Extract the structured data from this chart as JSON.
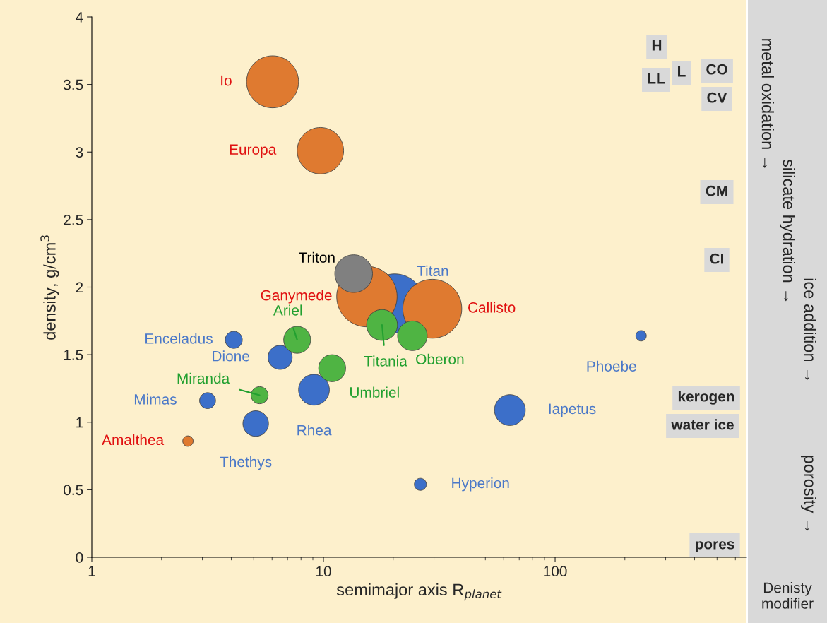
{
  "chart_data": {
    "type": "bubble",
    "xlabel": "semimajor axis R$_{planet}$",
    "ylabel": "density, g/cm$^{3}$",
    "log": "x",
    "xlim": [
      1,
      670
    ],
    "xticks": [
      1,
      10,
      100
    ],
    "ylim": [
      0,
      4
    ],
    "yticks": [
      0,
      0.5,
      1,
      1.5,
      2,
      2.5,
      3,
      3.5,
      4
    ],
    "grid": false,
    "series": [
      {
        "color": "#3c6fc9",
        "x": [
          20.3,
          4.1,
          6.5,
          3.16,
          9.1,
          5.1,
          26.2,
          63.8,
          235
        ],
        "values": [
          1.88,
          1.61,
          1.48,
          1.16,
          1.24,
          0.99,
          0.54,
          1.09,
          1.64
        ],
        "sizes": [
          0.95,
          0.08,
          0.16,
          0.07,
          0.26,
          0.18,
          0.04,
          0.26,
          0.03
        ],
        "value_labels": [
          "Titan",
          "Enceladus",
          "Dione",
          "Mimas",
          "Rhea",
          "Thethys",
          "Hyperion",
          "Iapetus",
          "Phoebe"
        ]
      },
      {
        "color": "#df7a30",
        "x": [
          6.03,
          9.7,
          15.4,
          29.5,
          2.6
        ],
        "values": [
          3.52,
          3.01,
          1.93,
          1.84,
          0.86
        ],
        "sizes": [
          0.74,
          0.59,
          1.0,
          0.95,
          0.03
        ],
        "value_labels": [
          "Io",
          "Europa",
          "Ganymede",
          "Callisto",
          "Amalthea"
        ]
      },
      {
        "color": "#4fb443",
        "x": [
          7.7,
          17.9,
          24.2,
          10.9,
          5.3
        ],
        "values": [
          1.61,
          1.72,
          1.64,
          1.4,
          1.2
        ],
        "sizes": [
          0.2,
          0.26,
          0.24,
          0.2,
          0.08
        ],
        "value_labels": [
          "Ariel",
          "Titania",
          "Oberon",
          "Umbriel",
          "Miranda"
        ]
      },
      {
        "color": "#808080",
        "x": [
          13.5
        ],
        "values": [
          2.1
        ],
        "sizes": [
          0.39
        ],
        "value_labels": [
          "Triton"
        ]
      }
    ],
    "annotations": [
      "H",
      "LL",
      "L",
      "CO",
      "CV",
      "CM",
      "CI",
      "kerogen",
      "water ice",
      "pores",
      "metal oxidation →",
      "silicate hydration →",
      "ice addition →",
      "porosity →",
      "Denisty modifier"
    ]
  }
}
